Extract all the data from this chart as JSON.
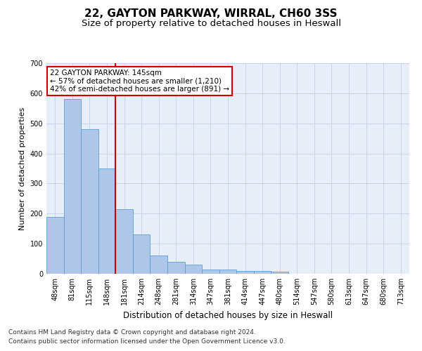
{
  "title1": "22, GAYTON PARKWAY, WIRRAL, CH60 3SS",
  "title2": "Size of property relative to detached houses in Heswall",
  "xlabel": "Distribution of detached houses by size in Heswall",
  "ylabel": "Number of detached properties",
  "categories": [
    "48sqm",
    "81sqm",
    "115sqm",
    "148sqm",
    "181sqm",
    "214sqm",
    "248sqm",
    "281sqm",
    "314sqm",
    "347sqm",
    "381sqm",
    "414sqm",
    "447sqm",
    "480sqm",
    "514sqm",
    "547sqm",
    "580sqm",
    "613sqm",
    "647sqm",
    "680sqm",
    "713sqm"
  ],
  "values": [
    190,
    580,
    480,
    350,
    215,
    130,
    60,
    40,
    30,
    15,
    15,
    10,
    10,
    7,
    0,
    0,
    0,
    0,
    0,
    0,
    0
  ],
  "bar_color": "#aec6e8",
  "bar_edge_color": "#5a9fd4",
  "vline_x_index": 3,
  "vline_color": "#cc0000",
  "annotation_text": "22 GAYTON PARKWAY: 145sqm\n← 57% of detached houses are smaller (1,210)\n42% of semi-detached houses are larger (891) →",
  "annotation_box_color": "#cc0000",
  "ylim": [
    0,
    700
  ],
  "yticks": [
    0,
    100,
    200,
    300,
    400,
    500,
    600,
    700
  ],
  "grid_color": "#c8d4e8",
  "bg_color": "#e8eef8",
  "footer1": "Contains HM Land Registry data © Crown copyright and database right 2024.",
  "footer2": "Contains public sector information licensed under the Open Government Licence v3.0.",
  "title1_fontsize": 11,
  "title2_fontsize": 9.5,
  "xlabel_fontsize": 8.5,
  "ylabel_fontsize": 8,
  "tick_fontsize": 7,
  "annotation_fontsize": 7.5,
  "footer_fontsize": 6.5
}
